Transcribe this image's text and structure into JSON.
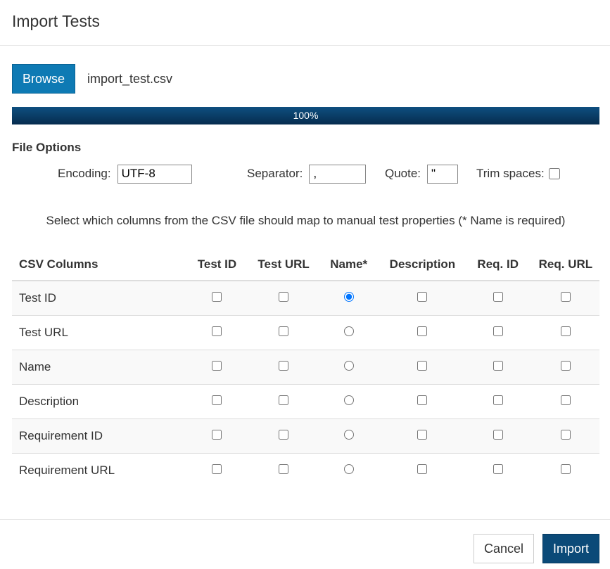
{
  "dialog": {
    "title": "Import Tests"
  },
  "file": {
    "browse_label": "Browse",
    "file_name": "import_test.csv"
  },
  "progress": {
    "value": 1.0,
    "label": "100%"
  },
  "file_options": {
    "title": "File Options",
    "encoding_label": "Encoding:",
    "encoding_value": "UTF-8",
    "separator_label": "Separator:",
    "separator_value": ",",
    "quote_label": "Quote:",
    "quote_value": "\"",
    "trim_label": "Trim spaces:",
    "trim_checked": false
  },
  "instruction": "Select which columns from the CSV file should map to manual test properties (* Name is required)",
  "mapping": {
    "headers": [
      "CSV Columns",
      "Test ID",
      "Test URL",
      "Name*",
      "Description",
      "Req. ID",
      "Req. URL"
    ],
    "rows": [
      {
        "label": "Test ID",
        "name_selected": true
      },
      {
        "label": "Test URL",
        "name_selected": false
      },
      {
        "label": "Name",
        "name_selected": false
      },
      {
        "label": "Description",
        "name_selected": false
      },
      {
        "label": "Requirement ID",
        "name_selected": false
      },
      {
        "label": "Requirement URL",
        "name_selected": false
      }
    ]
  },
  "footer": {
    "cancel_label": "Cancel",
    "import_label": "Import"
  },
  "colors": {
    "browse_button": "#0e7ab4",
    "import_button": "#0b4a78",
    "progress_fill": "#062c4e"
  }
}
